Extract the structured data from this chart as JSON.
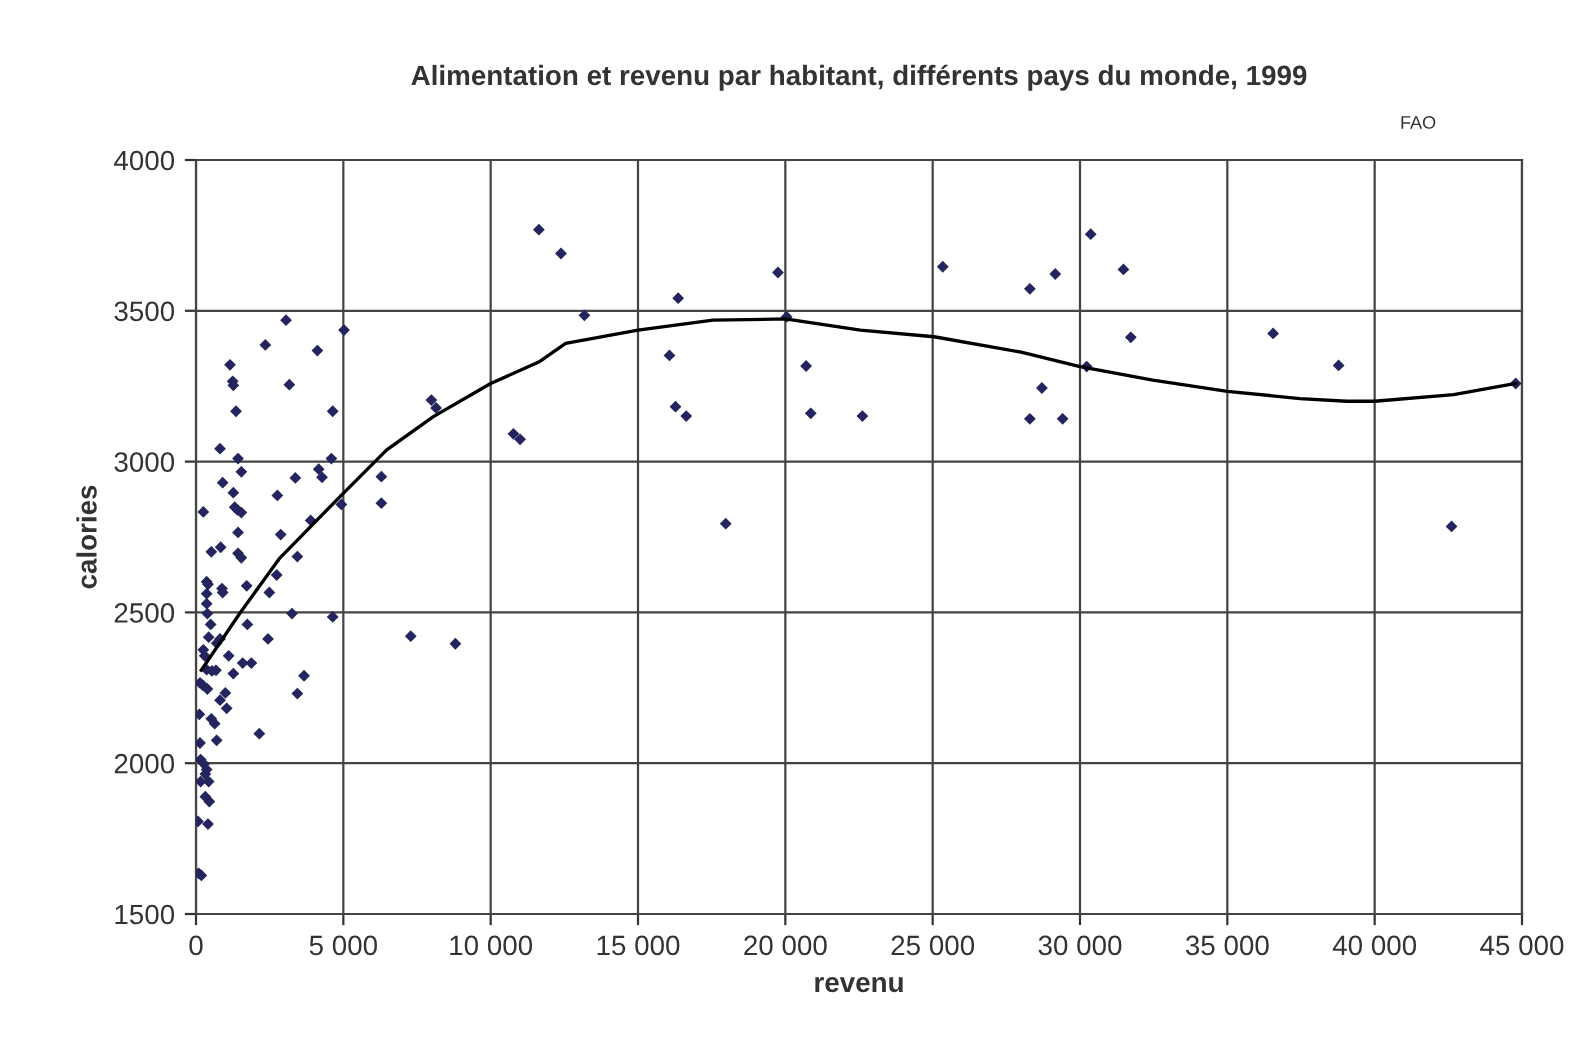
{
  "chart_data": {
    "type": "scatter",
    "title": "Alimentation et revenu par habitant, différents pays du monde, 1999",
    "xlabel": "revenu",
    "ylabel": "calories",
    "annotations": [
      "FAO"
    ],
    "xlim": [
      0,
      45000
    ],
    "ylim": [
      1500,
      4000
    ],
    "xticks": [
      {
        "value": 0,
        "label": "0"
      },
      {
        "value": 5000,
        "label": "5 000"
      },
      {
        "value": 10000,
        "label": "10 000"
      },
      {
        "value": 15000,
        "label": "15 000"
      },
      {
        "value": 20000,
        "label": "20 000"
      },
      {
        "value": 25000,
        "label": "25 000"
      },
      {
        "value": 30000,
        "label": "30 000"
      },
      {
        "value": 35000,
        "label": "35 000"
      },
      {
        "value": 40000,
        "label": "40 000"
      },
      {
        "value": 45000,
        "label": "45 000"
      }
    ],
    "yticks": [
      1500,
      2000,
      2500,
      3000,
      3500,
      4000
    ],
    "grid": true,
    "legend": false,
    "series": [
      {
        "color": "#24245e",
        "marker": "diamond",
        "x": [
          3055,
          5024,
          2353,
          4119,
          1154,
          1245,
          1267,
          3168,
          1358,
          4639,
          7988,
          8147,
          10772,
          10998,
          815,
          1426,
          4594,
          1539,
          4164,
          4277,
          905,
          3372,
          6291,
          1267,
          2761,
          249,
          1313,
          1403,
          1539,
          4933,
          6291,
          1426,
          2874,
          3892,
          520,
          837,
          1426,
          1539,
          3440,
          362,
          407,
          882,
          905,
          362,
          1720,
          2738,
          362,
          2489,
          385,
          3259,
          4639,
          498,
          1743,
          430,
          815,
          702,
          2444,
          7287,
          8803,
          249,
          294,
          1109,
          1584,
          1878,
          362,
          543,
          679,
          1267,
          3666,
          136,
          226,
          385,
          996,
          3440,
          815,
          1041,
          113,
          520,
          634,
          702,
          2150,
          136,
          158,
          272,
          362,
          317,
          158,
          430,
          317,
          452,
          68,
          407,
          90,
          181,
          11636,
          12386,
          13182,
          16364,
          16068,
          16273,
          16637,
          17978,
          19750,
          20046,
          20705,
          20864,
          22615,
          25342,
          28299,
          29161,
          30363,
          31474,
          31724,
          28707,
          28299,
          29410,
          30227,
          36554,
          38777,
          42610,
          44787
        ],
        "values": [
          3469,
          3436,
          3387,
          3368,
          3321,
          3266,
          3253,
          3255,
          3167,
          3167,
          3204,
          3178,
          3092,
          3074,
          3043,
          3010,
          3010,
          2966,
          2975,
          2948,
          2930,
          2946,
          2950,
          2897,
          2888,
          2833,
          2849,
          2840,
          2831,
          2858,
          2862,
          2765,
          2758,
          2805,
          2701,
          2716,
          2696,
          2681,
          2685,
          2602,
          2593,
          2579,
          2566,
          2562,
          2588,
          2624,
          2529,
          2566,
          2496,
          2496,
          2485,
          2460,
          2460,
          2418,
          2412,
          2398,
          2412,
          2421,
          2396,
          2376,
          2356,
          2356,
          2332,
          2332,
          2310,
          2306,
          2308,
          2297,
          2290,
          2266,
          2259,
          2246,
          2233,
          2231,
          2209,
          2182,
          2162,
          2147,
          2131,
          2076,
          2098,
          2067,
          2012,
          1997,
          1979,
          1964,
          1939,
          1939,
          1889,
          1873,
          1807,
          1798,
          1635,
          1628,
          3769,
          3690,
          3485,
          3542,
          3352,
          3182,
          3151,
          2794,
          3627,
          3480,
          3317,
          3160,
          3151,
          3646,
          3573,
          3622,
          3754,
          3637,
          3412,
          3244,
          3142,
          3142,
          3315,
          3425,
          3319,
          2785,
          3259
        ]
      },
      {
        "type": "line",
        "color": "#000000",
        "marker": "none",
        "line_style": "solid",
        "x": [
          180,
          1494,
          2851,
          4888,
          6472,
          8056,
          10000,
          11632,
          12545,
          15000,
          17546,
          20000,
          22546,
          25047,
          28000,
          30000,
          32472,
          35000,
          37462,
          39049,
          40000,
          42678,
          44787
        ],
        "values": [
          2308,
          2498,
          2681,
          2884,
          3039,
          3149,
          3259,
          3330,
          3392,
          3436,
          3469,
          3473,
          3436,
          3414,
          3363,
          3315,
          3270,
          3233,
          3209,
          3200,
          3200,
          3222,
          3259
        ]
      }
    ]
  }
}
